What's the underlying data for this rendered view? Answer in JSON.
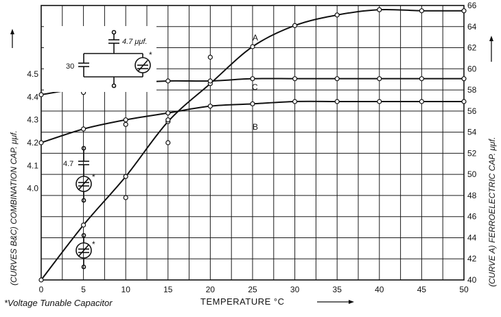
{
  "chart_data": {
    "type": "line",
    "xlabel": "TEMPERATURE °C",
    "x_ticks": [
      0,
      5,
      10,
      15,
      20,
      25,
      30,
      35,
      40,
      45,
      50
    ],
    "xlim": [
      0,
      50
    ],
    "ylabel_left": "(CURVES B&C)  COMBINATION CAP. μμf.",
    "ylim_left": [
      3.6,
      4.8
    ],
    "y_ticks_left": [
      "4.0",
      "4.1",
      "4.2",
      "4.3",
      "4.4",
      "4.5"
    ],
    "ylabel_right": "(CURVE A)  FERROELECTRIC CAP. μμf.",
    "ylim_right": [
      40,
      66
    ],
    "y_ticks_right": [
      "40",
      "42",
      "44",
      "46",
      "48",
      "50",
      "52",
      "54",
      "56",
      "58",
      "60",
      "62",
      "64",
      "66"
    ],
    "grid": true,
    "series": [
      {
        "name": "A",
        "axis": "right",
        "x": [
          0,
          5,
          10,
          15,
          20,
          25,
          30,
          35,
          40,
          45,
          50
        ],
        "values": [
          40.0,
          45.2,
          49.8,
          55.0,
          58.6,
          62.1,
          64.1,
          65.1,
          65.6,
          65.5,
          65.5
        ]
      },
      {
        "name": "B",
        "axis": "left",
        "x": [
          0,
          5,
          10,
          15,
          20,
          25,
          30,
          35,
          40,
          45,
          50
        ],
        "values": [
          4.2,
          4.26,
          4.3,
          4.33,
          4.36,
          4.37,
          4.38,
          4.38,
          4.38,
          4.38,
          4.38
        ]
      },
      {
        "name": "C",
        "axis": "left",
        "x": [
          0,
          5,
          10,
          15,
          20,
          25,
          30,
          35,
          40,
          45,
          50
        ],
        "values": [
          4.41,
          4.44,
          4.46,
          4.47,
          4.47,
          4.48,
          4.48,
          4.48,
          4.48,
          4.48,
          4.48
        ]
      }
    ],
    "extra_points": [
      {
        "axis": "left",
        "x": 5,
        "y": 4.42
      },
      {
        "axis": "left",
        "x": 10,
        "y": 4.45
      },
      {
        "axis": "left",
        "x": 10,
        "y": 4.28
      },
      {
        "axis": "left",
        "x": 10,
        "y": 3.96
      },
      {
        "axis": "left",
        "x": 15,
        "y": 4.3
      },
      {
        "axis": "left",
        "x": 15,
        "y": 4.2
      },
      {
        "axis": "right",
        "x": 20,
        "y": 61.1
      }
    ]
  },
  "annotations": {
    "inset_cap_1": "4.7 μμf.",
    "inset_cap_2": "30",
    "inset_star": "*",
    "left_cap": "4.7",
    "star_a": "*",
    "star_b": "*",
    "footnote": "*Voltage Tunable Capacitor"
  }
}
